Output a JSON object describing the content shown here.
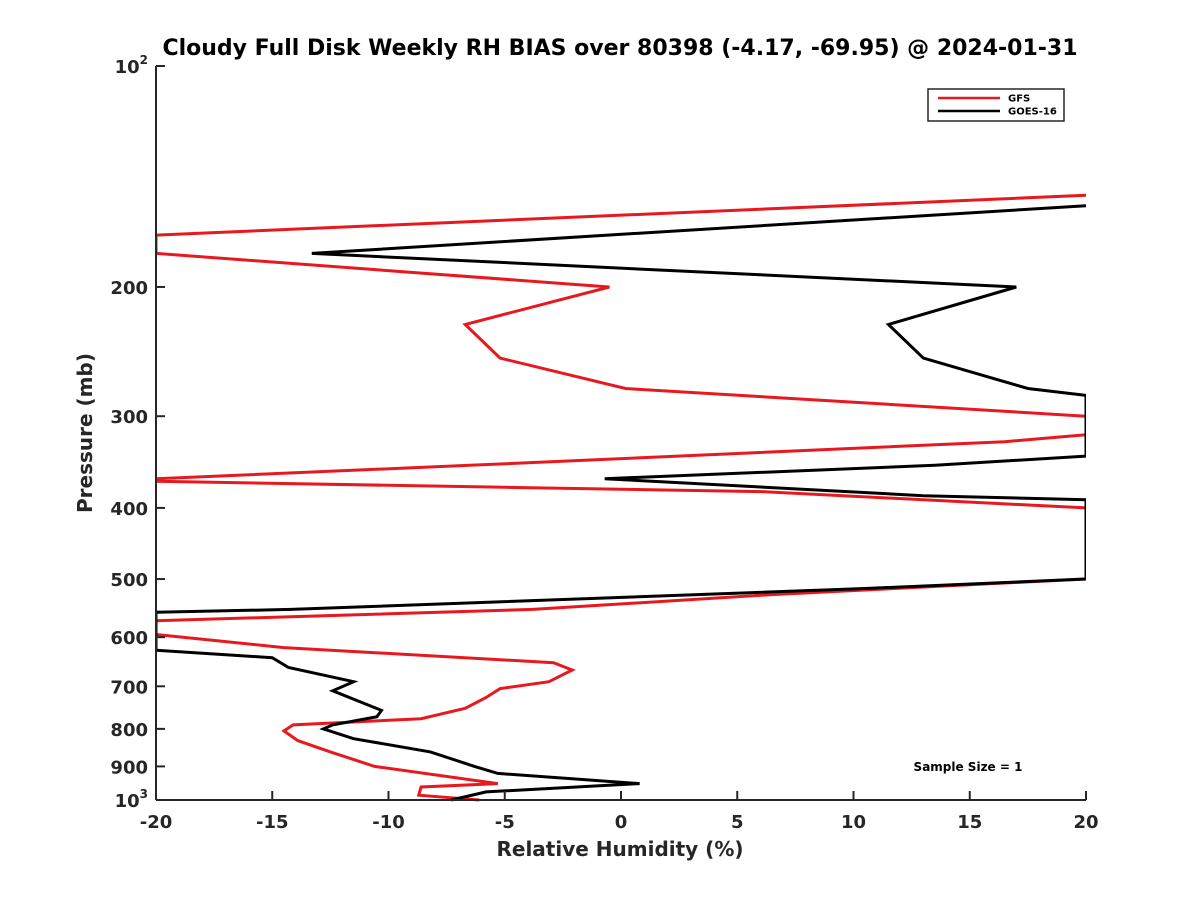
{
  "chart_data": {
    "type": "line",
    "title": "Cloudy Full Disk Weekly RH BIAS over 80398 (-4.17, -69.95) @ 2024-01-31",
    "xlabel": "Relative Humidity (%)",
    "ylabel": "Pressure (mb)",
    "xlim": [
      -20,
      20
    ],
    "ylim": [
      1000,
      100
    ],
    "yscale": "log",
    "x_ticks": [
      -20,
      -15,
      -10,
      -5,
      0,
      5,
      10,
      15,
      20
    ],
    "y_ticks": [
      {
        "value": 100,
        "base": "10",
        "exp": "2"
      },
      {
        "value": 200,
        "label": "200"
      },
      {
        "value": 300,
        "label": "300"
      },
      {
        "value": 400,
        "label": "400"
      },
      {
        "value": 500,
        "label": "500"
      },
      {
        "value": 600,
        "label": "600"
      },
      {
        "value": 700,
        "label": "700"
      },
      {
        "value": 800,
        "label": "800"
      },
      {
        "value": 900,
        "label": "900"
      },
      {
        "value": 1000,
        "base": "10",
        "exp": "3"
      }
    ],
    "legend_position": "top-right",
    "annotation": "Sample Size = 1",
    "series": [
      {
        "name": "GFS",
        "color": "#e8191e",
        "points": [
          [
            20,
            150
          ],
          [
            -20,
            170
          ],
          [
            -20,
            180
          ],
          [
            -0.5,
            200
          ],
          [
            -6.7,
            225
          ],
          [
            -5.2,
            250
          ],
          [
            0.2,
            275
          ],
          [
            20,
            300
          ],
          [
            20,
            318
          ],
          [
            16.5,
            325
          ],
          [
            -6.5,
            350
          ],
          [
            -20,
            365
          ],
          [
            -20,
            368
          ],
          [
            -5,
            375
          ],
          [
            6,
            380
          ],
          [
            20,
            400
          ],
          [
            20,
            500
          ],
          [
            6.5,
            525
          ],
          [
            -3.8,
            550
          ],
          [
            -20,
            570
          ],
          [
            -20,
            595
          ],
          [
            -14.5,
            620
          ],
          [
            -2.9,
            650
          ],
          [
            -2.1,
            665
          ],
          [
            -3.1,
            690
          ],
          [
            -5.2,
            705
          ],
          [
            -5.8,
            725
          ],
          [
            -6.7,
            750
          ],
          [
            -8.6,
            775
          ],
          [
            -14.1,
            790
          ],
          [
            -14.5,
            805
          ],
          [
            -13.9,
            830
          ],
          [
            -12.5,
            860
          ],
          [
            -10.6,
            900
          ],
          [
            -5.3,
            950
          ],
          [
            -8.6,
            960
          ],
          [
            -8.7,
            985
          ],
          [
            -6.1,
            1000
          ]
        ]
      },
      {
        "name": "GOES-16",
        "color": "#000000",
        "points": [
          [
            20,
            155
          ],
          [
            -13.3,
            180
          ],
          [
            17,
            200
          ],
          [
            11.5,
            225
          ],
          [
            13,
            250
          ],
          [
            17.5,
            275
          ],
          [
            20,
            281
          ],
          [
            20,
            340
          ],
          [
            13.5,
            350
          ],
          [
            -0.7,
            365
          ],
          [
            13,
            385
          ],
          [
            20,
            390
          ],
          [
            20,
            500
          ],
          [
            10.5,
            515
          ],
          [
            -14.2,
            550
          ],
          [
            -20,
            555
          ],
          [
            -20,
            625
          ],
          [
            -15,
            640
          ],
          [
            -14.3,
            660
          ],
          [
            -11.5,
            690
          ],
          [
            -12.4,
            710
          ],
          [
            -10.3,
            755
          ],
          [
            -10.5,
            770
          ],
          [
            -12.4,
            790
          ],
          [
            -12.8,
            800
          ],
          [
            -11.5,
            825
          ],
          [
            -8.2,
            860
          ],
          [
            -6.3,
            900
          ],
          [
            -5.3,
            920
          ],
          [
            0.8,
            950
          ],
          [
            -5.8,
            975
          ],
          [
            -7.3,
            1000
          ]
        ]
      }
    ]
  }
}
